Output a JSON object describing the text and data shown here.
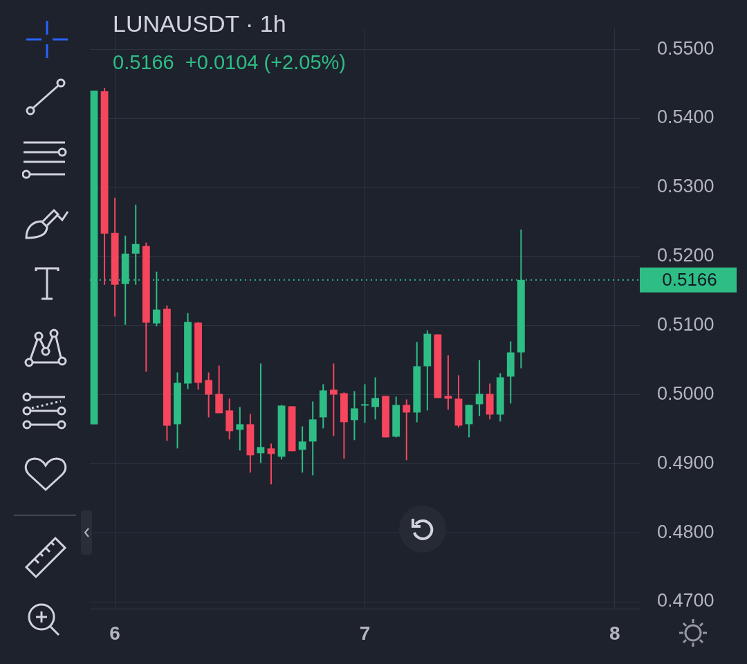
{
  "chart_data": {
    "type": "candlestick",
    "title": "LUNAUSDT · 1h",
    "subtitle": "0.5166  +0.0104 (+2.05%)",
    "x": [
      5.9167,
      5.9583,
      6,
      6.0417,
      6.0833,
      6.125,
      6.1667,
      6.2083,
      6.25,
      6.2917,
      6.3333,
      6.375,
      6.4167,
      6.4583,
      6.5,
      6.5417,
      6.5833,
      6.625,
      6.6667,
      6.7083,
      6.75,
      6.7917,
      6.8333,
      6.875,
      6.9167,
      6.9583,
      7,
      7.0417,
      7.0833,
      7.125,
      7.1667,
      7.2083,
      7.25,
      7.2917,
      7.3333,
      7.375,
      7.4167,
      7.4583,
      7.5,
      7.5417,
      7.5833,
      7.625
    ],
    "ohlc": [
      [
        0.4957,
        0.544,
        0.4957,
        0.544
      ],
      [
        0.5439,
        0.5444,
        0.5159,
        0.5233
      ],
      [
        0.5234,
        0.5285,
        0.5113,
        0.5159
      ],
      [
        0.516,
        0.523,
        0.5101,
        0.5204
      ],
      [
        0.5204,
        0.5275,
        0.5159,
        0.5218
      ],
      [
        0.5215,
        0.522,
        0.5033,
        0.5104
      ],
      [
        0.5103,
        0.5178,
        0.5099,
        0.5123
      ],
      [
        0.5124,
        0.5129,
        0.4933,
        0.4955
      ],
      [
        0.4957,
        0.5032,
        0.4922,
        0.5017
      ],
      [
        0.5016,
        0.5118,
        0.5008,
        0.5105
      ],
      [
        0.5104,
        0.5105,
        0.5007,
        0.5017
      ],
      [
        0.5021,
        0.5032,
        0.4967,
        0.5
      ],
      [
        0.5001,
        0.5042,
        0.4973,
        0.4973
      ],
      [
        0.4977,
        0.4994,
        0.4935,
        0.4947
      ],
      [
        0.4949,
        0.4982,
        0.4919,
        0.4957
      ],
      [
        0.4957,
        0.4972,
        0.4887,
        0.4912
      ],
      [
        0.4915,
        0.5045,
        0.4901,
        0.4924
      ],
      [
        0.4922,
        0.4929,
        0.487,
        0.4914
      ],
      [
        0.491,
        0.4985,
        0.4906,
        0.4984
      ],
      [
        0.4983,
        0.4983,
        0.4918,
        0.4918
      ],
      [
        0.492,
        0.4954,
        0.4887,
        0.4932
      ],
      [
        0.4932,
        0.499,
        0.4883,
        0.4964
      ],
      [
        0.4967,
        0.5015,
        0.4951,
        0.5006
      ],
      [
        0.5007,
        0.5045,
        0.494,
        0.5
      ],
      [
        0.5002,
        0.5003,
        0.4907,
        0.496
      ],
      [
        0.4963,
        0.5005,
        0.4934,
        0.498
      ],
      [
        0.4984,
        0.5015,
        0.4959,
        0.4986
      ],
      [
        0.4982,
        0.5025,
        0.4964,
        0.4995
      ],
      [
        0.4998,
        0.4998,
        0.4938,
        0.4938
      ],
      [
        0.4939,
        0.4997,
        0.4938,
        0.4985
      ],
      [
        0.4985,
        0.4993,
        0.4905,
        0.4974
      ],
      [
        0.4974,
        0.5076,
        0.496,
        0.5041
      ],
      [
        0.5041,
        0.5093,
        0.4977,
        0.5088
      ],
      [
        0.5087,
        0.5087,
        0.4995,
        0.4995
      ],
      [
        0.4998,
        0.5057,
        0.4978,
        0.4994
      ],
      [
        0.4994,
        0.5028,
        0.4952,
        0.4955
      ],
      [
        0.4957,
        0.4985,
        0.4938,
        0.4985
      ],
      [
        0.4986,
        0.505,
        0.4969,
        0.5001
      ],
      [
        0.5001,
        0.5016,
        0.4964,
        0.4971
      ],
      [
        0.4971,
        0.5031,
        0.4961,
        0.5025
      ],
      [
        0.5026,
        0.5077,
        0.4987,
        0.5061
      ],
      [
        0.5061,
        0.5239,
        0.5038,
        0.5166
      ]
    ],
    "colors": [
      "#2ebd85",
      "#f6465d",
      "#f6465d",
      "#2ebd85",
      "#2ebd85",
      "#f6465d",
      "#2ebd85",
      "#f6465d",
      "#2ebd85",
      "#2ebd85",
      "#f6465d",
      "#f6465d",
      "#f6465d",
      "#f6465d",
      "#2ebd85",
      "#f6465d",
      "#2ebd85",
      "#f6465d",
      "#2ebd85",
      "#f6465d",
      "#2ebd85",
      "#2ebd85",
      "#2ebd85",
      "#f6465d",
      "#f6465d",
      "#2ebd85",
      "#2ebd85",
      "#2ebd85",
      "#f6465d",
      "#2ebd85",
      "#f6465d",
      "#2ebd85",
      "#2ebd85",
      "#f6465d",
      "#f6465d",
      "#f6465d",
      "#2ebd85",
      "#2ebd85",
      "#f6465d",
      "#2ebd85",
      "#2ebd85",
      "#2ebd85"
    ],
    "xlim": [
      5.9,
      8.1
    ],
    "xticks": [
      6,
      7,
      8
    ],
    "ylim": [
      0.469,
      0.553
    ],
    "yticks": [
      {
        "value": 0.47,
        "label": "0.4700"
      },
      {
        "value": 0.48,
        "label": "0.4800"
      },
      {
        "value": 0.49,
        "label": "0.4900"
      },
      {
        "value": 0.5,
        "label": "0.5000"
      },
      {
        "value": 0.51,
        "label": "0.5100"
      },
      {
        "value": 0.52,
        "label": "0.5200"
      },
      {
        "value": 0.53,
        "label": "0.5300"
      },
      {
        "value": 0.54,
        "label": "0.5400"
      },
      {
        "value": 0.55,
        "label": "0.5500"
      }
    ],
    "grid": true,
    "ref_lines": [
      {
        "axis": "y",
        "value": 0.5166,
        "label": "0.5166",
        "color": "#2ebd85",
        "line_style": "dotted"
      }
    ]
  }
}
